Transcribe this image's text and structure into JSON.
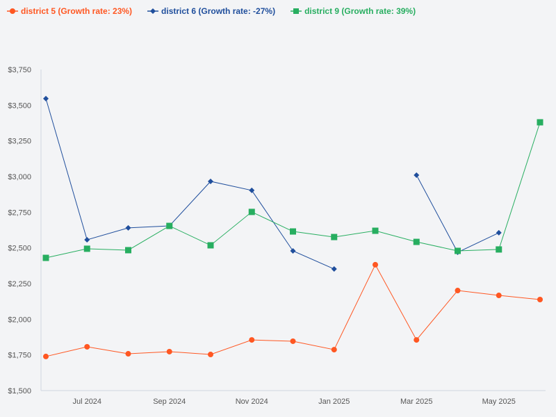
{
  "chart_data": {
    "type": "line",
    "title": "",
    "xlabel": "",
    "ylabel": "",
    "x": [
      "Jun 2024",
      "Jul 2024",
      "Aug 2024",
      "Sep 2024",
      "Oct 2024",
      "Nov 2024",
      "Dec 2024",
      "Jan 2025",
      "Feb 2025",
      "Mar 2025",
      "Apr 2025",
      "May 2025",
      "Jun 2025"
    ],
    "x_tick_labels": [
      "Jul 2024",
      "Sep 2024",
      "Nov 2024",
      "Jan 2025",
      "Mar 2025",
      "May 2025"
    ],
    "ylim": [
      1500,
      3750
    ],
    "y_ticks": [
      1500,
      1750,
      2000,
      2250,
      2500,
      2750,
      3000,
      3250,
      3500,
      3750
    ],
    "y_tick_labels": [
      "$1,500",
      "$1,750",
      "$2,000",
      "$2,250",
      "$2,500",
      "$2,750",
      "$3,000",
      "$3,250",
      "$3,500",
      "$3,750"
    ],
    "grid": false,
    "legend_placement": "top-left",
    "series": [
      {
        "name": "district 5 (Growth rate: 23%)",
        "color": "#ff5722",
        "marker": "circle",
        "values": [
          1739,
          1807,
          1758,
          1773,
          1753,
          1855,
          1846,
          1787,
          2382,
          1855,
          2201,
          2167,
          2138
        ]
      },
      {
        "name": "district 6 (Growth rate: -27%)",
        "color": "#1f4e9c",
        "marker": "diamond",
        "values": [
          3546,
          2557,
          2640,
          2654,
          2966,
          2903,
          2479,
          2352,
          null,
          3010,
          2469,
          2606,
          null
        ]
      },
      {
        "name": "district 9 (Growth rate: 39%)",
        "color": "#27ae60",
        "marker": "square",
        "values": [
          2430,
          2494,
          2484,
          2654,
          2518,
          2752,
          2615,
          2576,
          2620,
          2542,
          2479,
          2489,
          3380
        ]
      }
    ]
  }
}
